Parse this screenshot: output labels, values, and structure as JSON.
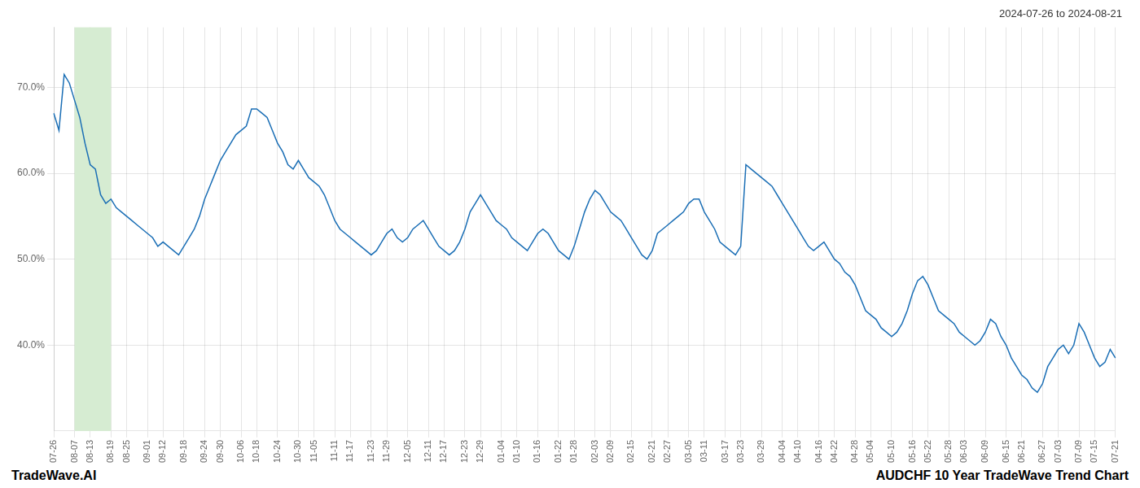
{
  "chart_data": {
    "type": "line",
    "title": "2024-07-26 to 2024-08-21",
    "annotations": [
      "TradeWave.AI",
      "AUDCHF 10 Year TradeWave Trend Chart"
    ],
    "categories": [
      "07-26",
      null,
      null,
      null,
      "08-07",
      null,
      null,
      "08-13",
      null,
      null,
      null,
      "08-19",
      null,
      null,
      "08-25",
      null,
      null,
      null,
      "09-01",
      null,
      null,
      "09-12",
      null,
      null,
      null,
      "09-18",
      null,
      null,
      null,
      "09-24",
      null,
      null,
      "09-30",
      null,
      null,
      null,
      "10-06",
      null,
      null,
      "10-18",
      null,
      null,
      null,
      "10-24",
      null,
      null,
      null,
      "10-30",
      null,
      null,
      "11-05",
      null,
      null,
      null,
      "11-11",
      null,
      null,
      "11-17",
      null,
      null,
      null,
      "11-23",
      null,
      null,
      "11-29",
      null,
      null,
      null,
      "12-05",
      null,
      null,
      null,
      "12-11",
      null,
      null,
      "12-17",
      null,
      null,
      null,
      "12-23",
      null,
      null,
      "12-29",
      null,
      null,
      null,
      "01-04",
      null,
      null,
      "01-10",
      null,
      null,
      null,
      "01-16",
      null,
      null,
      null,
      "01-22",
      null,
      null,
      "01-28",
      null,
      null,
      null,
      "02-03",
      null,
      null,
      "02-09",
      null,
      null,
      null,
      "02-15",
      null,
      null,
      null,
      "02-21",
      null,
      null,
      "02-27",
      null,
      null,
      null,
      "03-05",
      null,
      null,
      "03-11",
      null,
      null,
      null,
      "03-17",
      null,
      null,
      "03-23",
      null,
      null,
      null,
      "03-29",
      null,
      null,
      null,
      "04-04",
      null,
      null,
      "04-10",
      null,
      null,
      null,
      "04-16",
      null,
      null,
      "04-22",
      null,
      null,
      null,
      "04-28",
      null,
      null,
      "05-04",
      null,
      null,
      null,
      "05-10",
      null,
      null,
      null,
      "05-16",
      null,
      null,
      "05-22",
      null,
      null,
      null,
      "05-28",
      null,
      null,
      "06-03",
      null,
      null,
      null,
      "06-09",
      null,
      null,
      null,
      "06-15",
      null,
      null,
      "06-21",
      null,
      null,
      null,
      "06-27",
      null,
      null,
      "07-03",
      null,
      null,
      null,
      "07-09",
      null,
      null,
      "07-15",
      null,
      null,
      null,
      "07-21"
    ],
    "values": [
      67.0,
      65.0,
      71.5,
      70.5,
      68.5,
      66.5,
      63.5,
      61.0,
      60.5,
      57.5,
      56.5,
      57.0,
      56.0,
      55.5,
      55.0,
      54.5,
      54.0,
      53.5,
      53.0,
      52.5,
      51.5,
      52.0,
      51.5,
      51.0,
      50.5,
      51.5,
      52.5,
      53.5,
      55.0,
      57.0,
      58.5,
      60.0,
      61.5,
      62.5,
      63.5,
      64.5,
      65.0,
      65.5,
      67.5,
      67.5,
      67.0,
      66.5,
      65.0,
      63.5,
      62.5,
      61.0,
      60.5,
      61.5,
      60.5,
      59.5,
      59.0,
      58.5,
      57.5,
      56.0,
      54.5,
      53.5,
      53.0,
      52.5,
      52.0,
      51.5,
      51.0,
      50.5,
      51.0,
      52.0,
      53.0,
      53.5,
      52.5,
      52.0,
      52.5,
      53.5,
      54.0,
      54.5,
      53.5,
      52.5,
      51.5,
      51.0,
      50.5,
      51.0,
      52.0,
      53.5,
      55.5,
      56.5,
      57.5,
      56.5,
      55.5,
      54.5,
      54.0,
      53.5,
      52.5,
      52.0,
      51.5,
      51.0,
      52.0,
      53.0,
      53.5,
      53.0,
      52.0,
      51.0,
      50.5,
      50.0,
      51.5,
      53.5,
      55.5,
      57.0,
      58.0,
      57.5,
      56.5,
      55.5,
      55.0,
      54.5,
      53.5,
      52.5,
      51.5,
      50.5,
      50.0,
      51.0,
      53.0,
      53.5,
      54.0,
      54.5,
      55.0,
      55.5,
      56.5,
      57.0,
      57.0,
      55.5,
      54.5,
      53.5,
      52.0,
      51.5,
      51.0,
      50.5,
      51.5,
      61.0,
      60.5,
      60.0,
      59.5,
      59.0,
      58.5,
      57.5,
      56.5,
      55.5,
      54.5,
      53.5,
      52.5,
      51.5,
      51.0,
      51.5,
      52.0,
      51.0,
      50.0,
      49.5,
      48.5,
      48.0,
      47.0,
      45.5,
      44.0,
      43.5,
      43.0,
      42.0,
      41.5,
      41.0,
      41.5,
      42.5,
      44.0,
      46.0,
      47.5,
      48.0,
      47.0,
      45.5,
      44.0,
      43.5,
      43.0,
      42.5,
      41.5,
      41.0,
      40.5,
      40.0,
      40.5,
      41.5,
      43.0,
      42.5,
      41.0,
      40.0,
      38.5,
      37.5,
      36.5,
      36.0,
      35.0,
      34.5,
      35.5,
      37.5,
      38.5,
      39.5,
      40.0,
      39.0,
      40.0,
      42.5,
      41.5,
      40.0,
      38.5,
      37.5,
      38.0,
      39.5,
      38.5
    ],
    "color": "#1a6eb5",
    "ylim": [
      30,
      77
    ],
    "yticks": [
      {
        "value": 40,
        "label": "40.0%"
      },
      {
        "value": 50,
        "label": "50.0%"
      },
      {
        "value": 60,
        "label": "60.0%"
      },
      {
        "value": 70,
        "label": "70.0%"
      }
    ],
    "grid": true,
    "highlight": {
      "from": "08-07",
      "to": "08-19",
      "color": "#d6ecd2"
    }
  }
}
